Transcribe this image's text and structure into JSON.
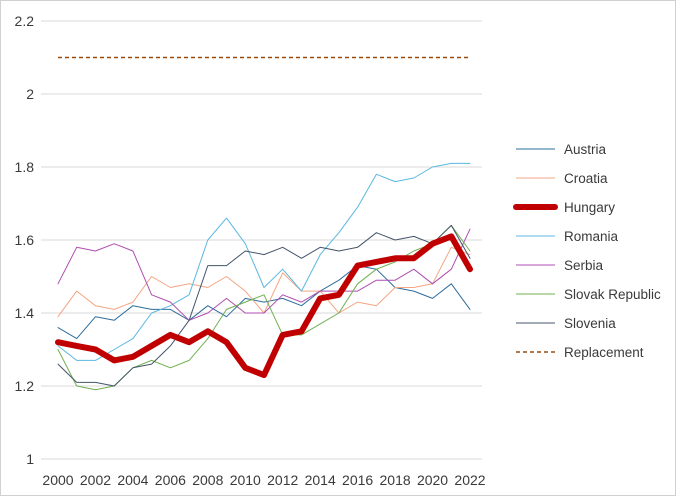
{
  "chart_data": {
    "type": "line",
    "title": "",
    "xlabel": "",
    "ylabel": "",
    "x": [
      2000,
      2001,
      2002,
      2003,
      2004,
      2005,
      2006,
      2007,
      2008,
      2009,
      2010,
      2011,
      2012,
      2013,
      2014,
      2015,
      2016,
      2017,
      2018,
      2019,
      2020,
      2021,
      2022
    ],
    "x_tick_labels": [
      "2000",
      "2002",
      "2004",
      "2006",
      "2008",
      "2010",
      "2012",
      "2014",
      "2016",
      "2018",
      "2020",
      "2022"
    ],
    "y_tick_labels": [
      "1",
      "1.2",
      "1.4",
      "1.6",
      "1.8",
      "2",
      "2.2"
    ],
    "ylim": [
      1,
      2.2
    ],
    "grid": "horizontal",
    "legend_position": "right",
    "series": [
      {
        "name": "Austria",
        "color": "#2e6e9e",
        "style": "solid",
        "width": "thin",
        "values": [
          1.36,
          1.33,
          1.39,
          1.38,
          1.42,
          1.41,
          1.41,
          1.38,
          1.42,
          1.39,
          1.44,
          1.43,
          1.44,
          1.42,
          1.46,
          1.49,
          1.53,
          1.52,
          1.47,
          1.46,
          1.44,
          1.48,
          1.41
        ]
      },
      {
        "name": "Croatia",
        "color": "#f4a582",
        "style": "solid",
        "width": "thin",
        "values": [
          1.39,
          1.46,
          1.42,
          1.41,
          1.43,
          1.5,
          1.47,
          1.48,
          1.47,
          1.5,
          1.46,
          1.4,
          1.51,
          1.46,
          1.46,
          1.4,
          1.43,
          1.42,
          1.47,
          1.47,
          1.48,
          1.58,
          1.56
        ]
      },
      {
        "name": "Hungary",
        "color": "#c00000",
        "style": "solid",
        "width": "thick",
        "values": [
          1.32,
          1.31,
          1.3,
          1.27,
          1.28,
          1.31,
          1.34,
          1.32,
          1.35,
          1.32,
          1.25,
          1.23,
          1.34,
          1.35,
          1.44,
          1.45,
          1.53,
          1.54,
          1.55,
          1.55,
          1.59,
          1.61,
          1.52
        ]
      },
      {
        "name": "Romania",
        "color": "#5bb8e0",
        "style": "solid",
        "width": "thin",
        "values": [
          1.31,
          1.27,
          1.27,
          1.3,
          1.33,
          1.4,
          1.42,
          1.45,
          1.6,
          1.66,
          1.59,
          1.47,
          1.52,
          1.46,
          1.56,
          1.62,
          1.69,
          1.78,
          1.76,
          1.77,
          1.8,
          1.81,
          1.81
        ]
      },
      {
        "name": "Serbia",
        "color": "#b04db0",
        "style": "solid",
        "width": "thin",
        "values": [
          1.48,
          1.58,
          1.57,
          1.59,
          1.57,
          1.45,
          1.43,
          1.38,
          1.4,
          1.44,
          1.4,
          1.4,
          1.45,
          1.43,
          1.46,
          1.46,
          1.46,
          1.49,
          1.49,
          1.52,
          1.48,
          1.52,
          1.63
        ]
      },
      {
        "name": "Slovak Republic",
        "color": "#70b050",
        "style": "solid",
        "width": "thin",
        "values": [
          1.3,
          1.2,
          1.19,
          1.2,
          1.25,
          1.27,
          1.25,
          1.27,
          1.33,
          1.41,
          1.43,
          1.45,
          1.34,
          1.34,
          1.37,
          1.4,
          1.48,
          1.52,
          1.54,
          1.57,
          1.59,
          1.64,
          1.57
        ]
      },
      {
        "name": "Slovenia",
        "color": "#44546a",
        "style": "solid",
        "width": "thin",
        "values": [
          1.26,
          1.21,
          1.21,
          1.2,
          1.25,
          1.26,
          1.31,
          1.38,
          1.53,
          1.53,
          1.57,
          1.56,
          1.58,
          1.55,
          1.58,
          1.57,
          1.58,
          1.62,
          1.6,
          1.61,
          1.59,
          1.64,
          1.55
        ]
      },
      {
        "name": "Replacement",
        "color": "#9c4a0c",
        "style": "dashed",
        "width": "medium",
        "values": [
          2.1,
          2.1,
          2.1,
          2.1,
          2.1,
          2.1,
          2.1,
          2.1,
          2.1,
          2.1,
          2.1,
          2.1,
          2.1,
          2.1,
          2.1,
          2.1,
          2.1,
          2.1,
          2.1,
          2.1,
          2.1,
          2.1,
          2.1
        ]
      }
    ]
  }
}
